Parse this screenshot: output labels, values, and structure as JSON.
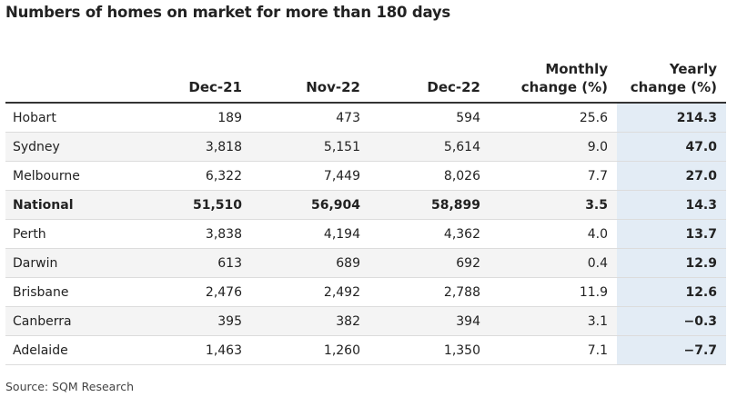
{
  "title": "Numbers of homes on market for more than 180 days",
  "source": "Source: SQM Research",
  "chart_data": {
    "type": "table",
    "title": "Numbers of homes on market for more than 180 days",
    "columns": [
      "",
      "Dec-21",
      "Nov-22",
      "Dec-22",
      [
        "Monthly",
        "change (%)"
      ],
      [
        "Yearly",
        "change (%)"
      ]
    ],
    "rows": [
      {
        "name": "Hobart",
        "values": [
          "189",
          "473",
          "594",
          "25.6",
          "214.3"
        ]
      },
      {
        "name": "Sydney",
        "values": [
          "3,818",
          "5,151",
          "5,614",
          "9.0",
          "47.0"
        ]
      },
      {
        "name": "Melbourne",
        "values": [
          "6,322",
          "7,449",
          "8,026",
          "7.7",
          "27.0"
        ]
      },
      {
        "name": "National",
        "values": [
          "51,510",
          "56,904",
          "58,899",
          "3.5",
          "14.3"
        ],
        "bold": true
      },
      {
        "name": "Perth",
        "values": [
          "3,838",
          "4,194",
          "4,362",
          "4.0",
          "13.7"
        ]
      },
      {
        "name": "Darwin",
        "values": [
          "613",
          "689",
          "692",
          "0.4",
          "12.9"
        ]
      },
      {
        "name": "Brisbane",
        "values": [
          "2,476",
          "2,492",
          "2,788",
          "11.9",
          "12.6"
        ]
      },
      {
        "name": "Canberra",
        "values": [
          "395",
          "382",
          "394",
          "3.1",
          "−0.3"
        ]
      },
      {
        "name": "Adelaide",
        "values": [
          "1,463",
          "1,260",
          "1,350",
          "7.1",
          "−7.7"
        ]
      }
    ],
    "highlight_color": "#e3ecf5"
  }
}
